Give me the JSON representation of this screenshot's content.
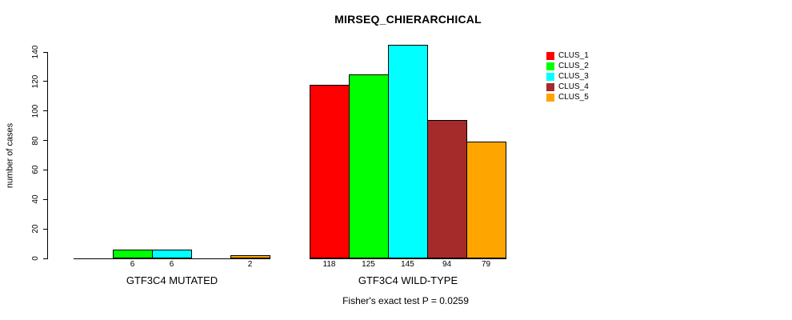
{
  "chart_data": {
    "type": "bar",
    "title": "MIRSEQ_CHIERARCHICAL",
    "xlabel": "",
    "ylabel": "number of cases",
    "ylim": [
      0,
      145
    ],
    "yticks": [
      0,
      20,
      40,
      60,
      80,
      100,
      120,
      140
    ],
    "grid": false,
    "legend_position": "top-right",
    "categories": [
      "GTF3C4 MUTATED",
      "GTF3C4 WILD-TYPE"
    ],
    "series": [
      {
        "name": "CLUS_1",
        "color": "#FF0000",
        "values": [
          0,
          118
        ]
      },
      {
        "name": "CLUS_2",
        "color": "#00FF00",
        "values": [
          6,
          125
        ]
      },
      {
        "name": "CLUS_3",
        "color": "#00FFFF",
        "values": [
          6,
          145
        ]
      },
      {
        "name": "CLUS_4",
        "color": "#A52A2A",
        "values": [
          0,
          94
        ]
      },
      {
        "name": "CLUS_5",
        "color": "#FFA500",
        "values": [
          2,
          79
        ]
      }
    ],
    "bar_value_labels": {
      "GTF3C4 MUTATED": [
        "",
        "6",
        "6",
        "",
        "2"
      ],
      "GTF3C4 WILD-TYPE": [
        "118",
        "125",
        "145",
        "94",
        "79"
      ]
    },
    "annotation": "Fisher's exact test P = 0.0259"
  }
}
